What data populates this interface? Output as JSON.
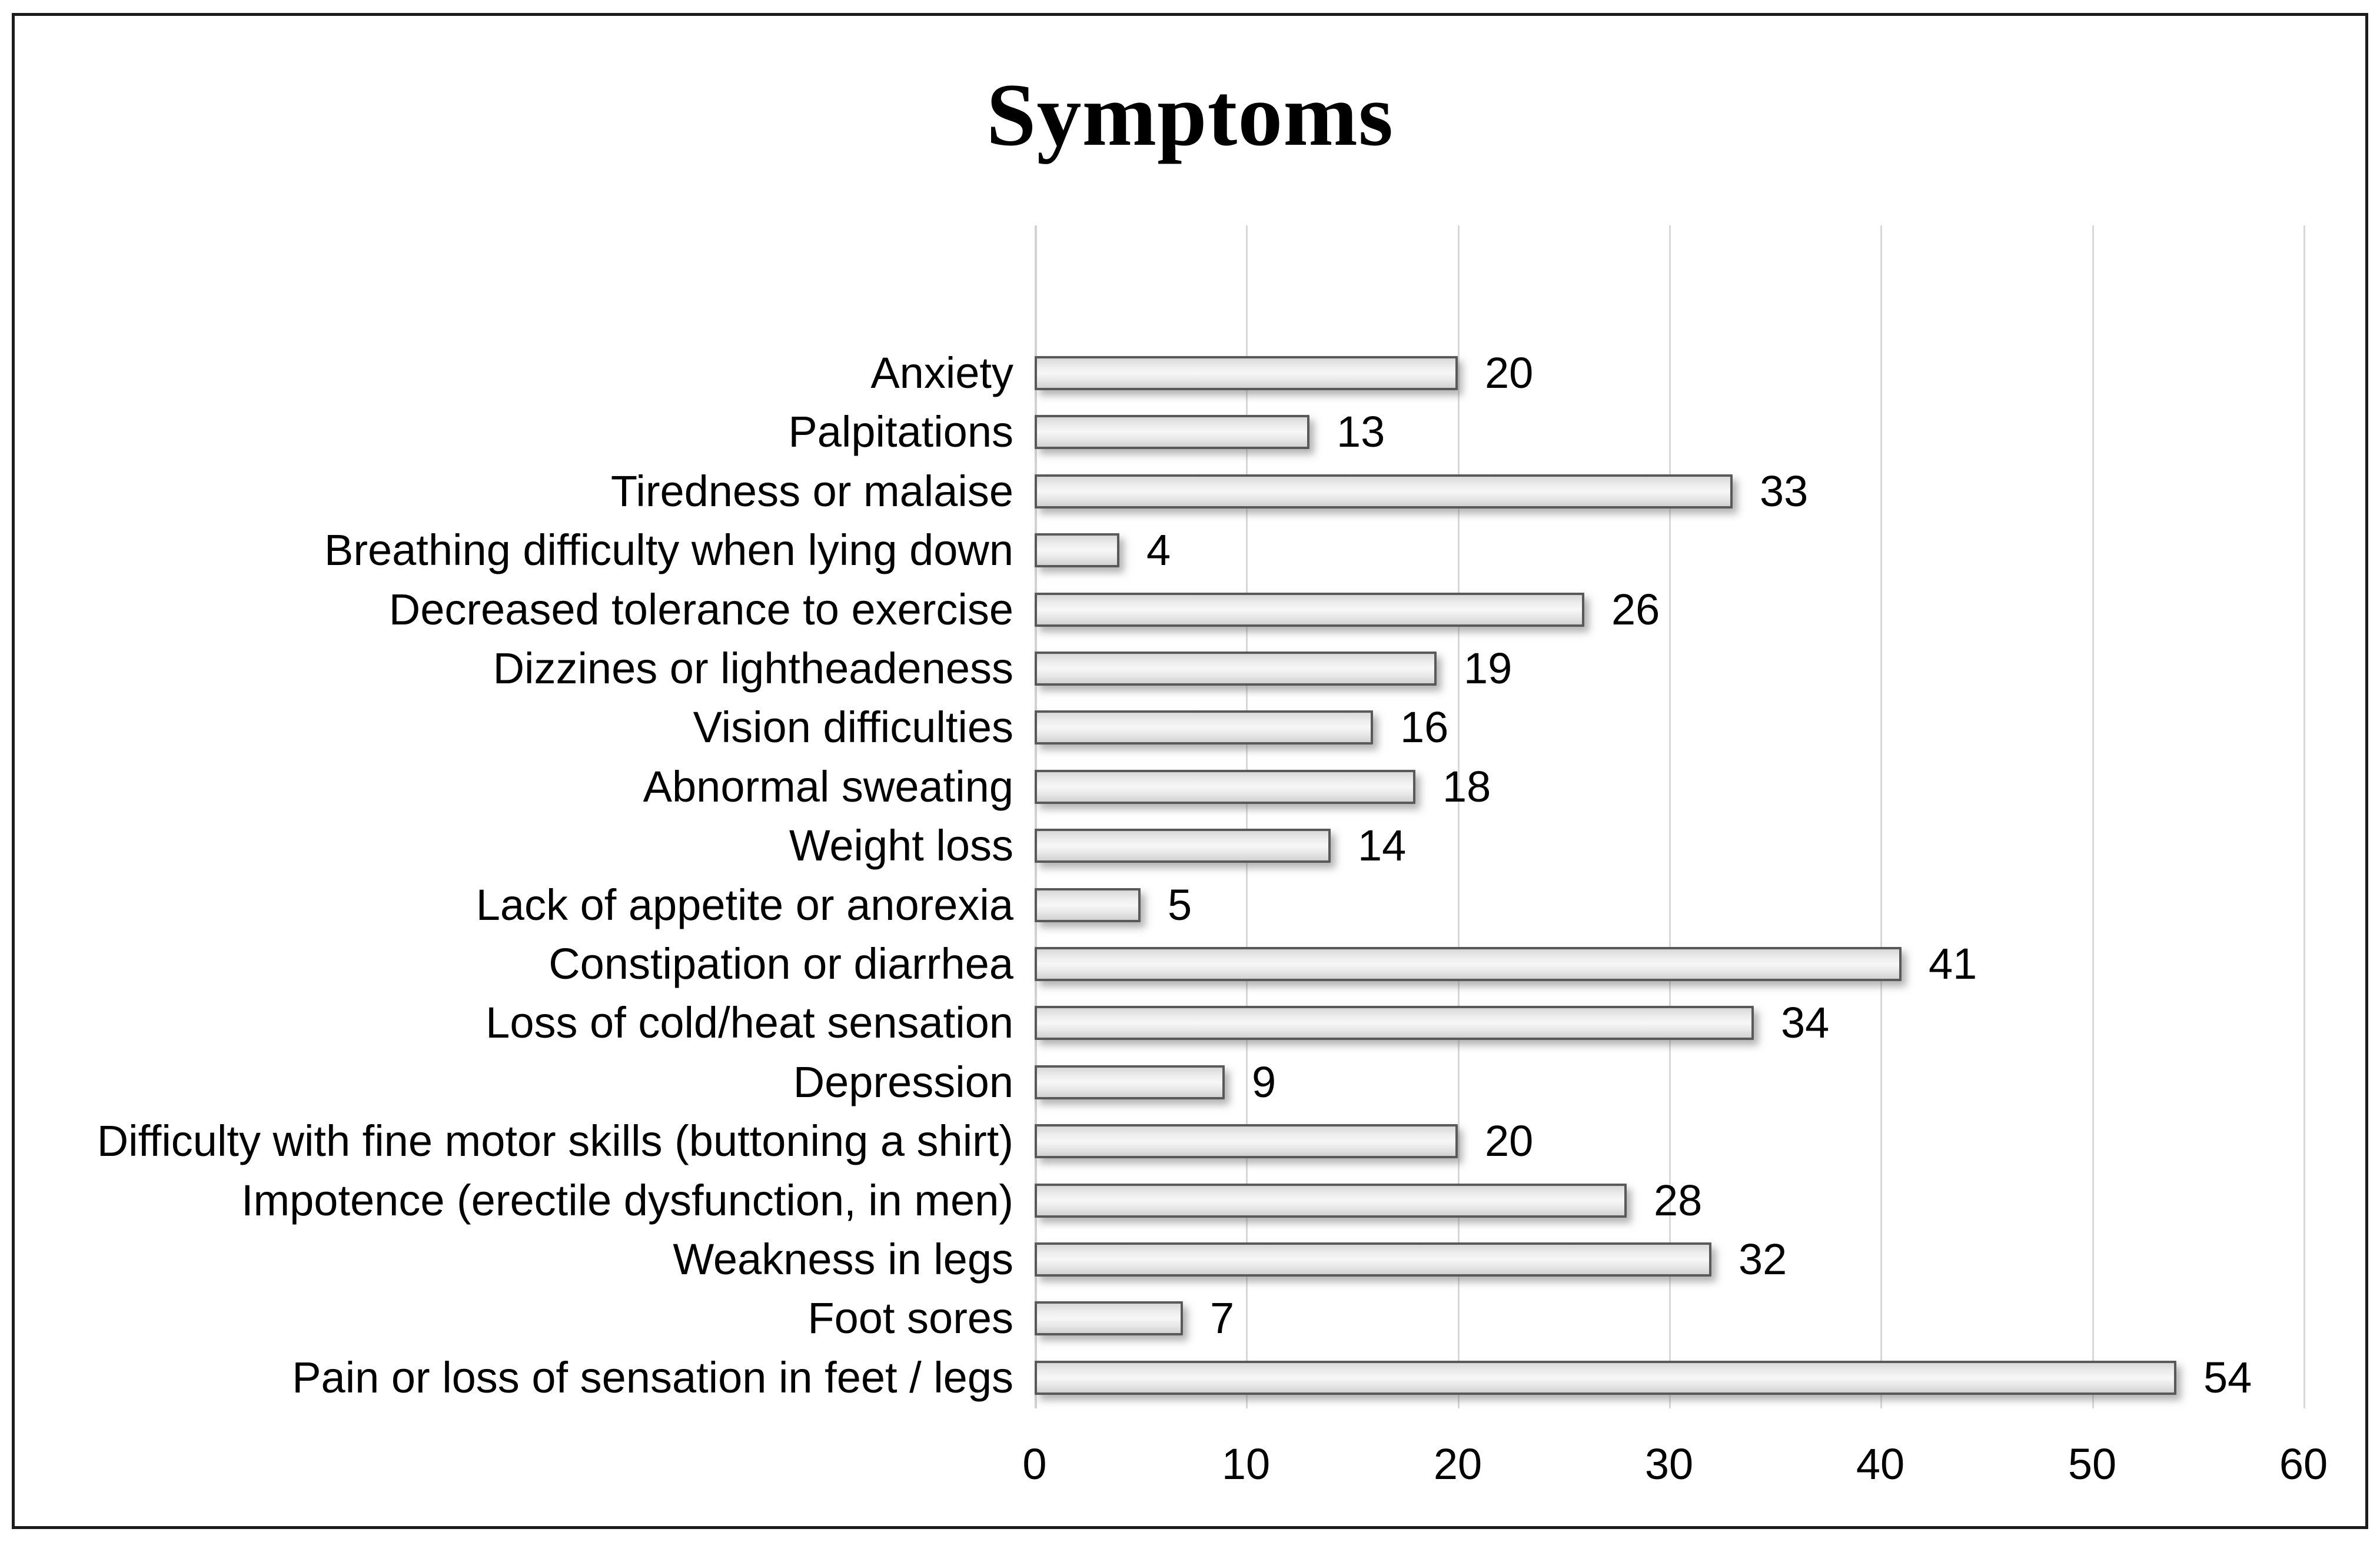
{
  "chart_data": {
    "type": "bar",
    "orientation": "horizontal",
    "title": "Symptoms",
    "categories": [
      "Anxiety",
      "Palpitations",
      "Tiredness or malaise",
      "Breathing difficulty when lying down",
      "Decreased tolerance to exercise",
      "Dizzines or lightheadeness",
      "Vision difficulties",
      "Abnormal sweating",
      "Weight loss",
      "Lack of appetite or anorexia",
      "Constipation or diarrhea",
      "Loss of cold/heat sensation",
      "Depression",
      "Difficulty with fine motor skills (buttoning a shirt)",
      "Impotence (erectile dysfunction, in men)",
      "Weakness in legs",
      "Foot sores",
      "Pain or loss of sensation in feet / legs"
    ],
    "values": [
      20,
      13,
      33,
      4,
      26,
      19,
      16,
      18,
      14,
      5,
      41,
      34,
      9,
      20,
      28,
      32,
      7,
      54
    ],
    "xlabel": "",
    "ylabel": "",
    "xlim": [
      0,
      60
    ],
    "x_ticks": [
      0,
      10,
      20,
      30,
      40,
      50,
      60
    ],
    "grid": "vertical-gridlines-on",
    "legend": "none",
    "value_labels": "end-of-bar",
    "colors": {
      "bar_fill_light": "#f7f7f7",
      "bar_fill_dark": "#d2d2d2",
      "bar_border": "#595959",
      "gridline": "#d9d9d9",
      "frame_border": "#1c1c1c",
      "text": "#000000",
      "background": "#ffffff"
    }
  }
}
